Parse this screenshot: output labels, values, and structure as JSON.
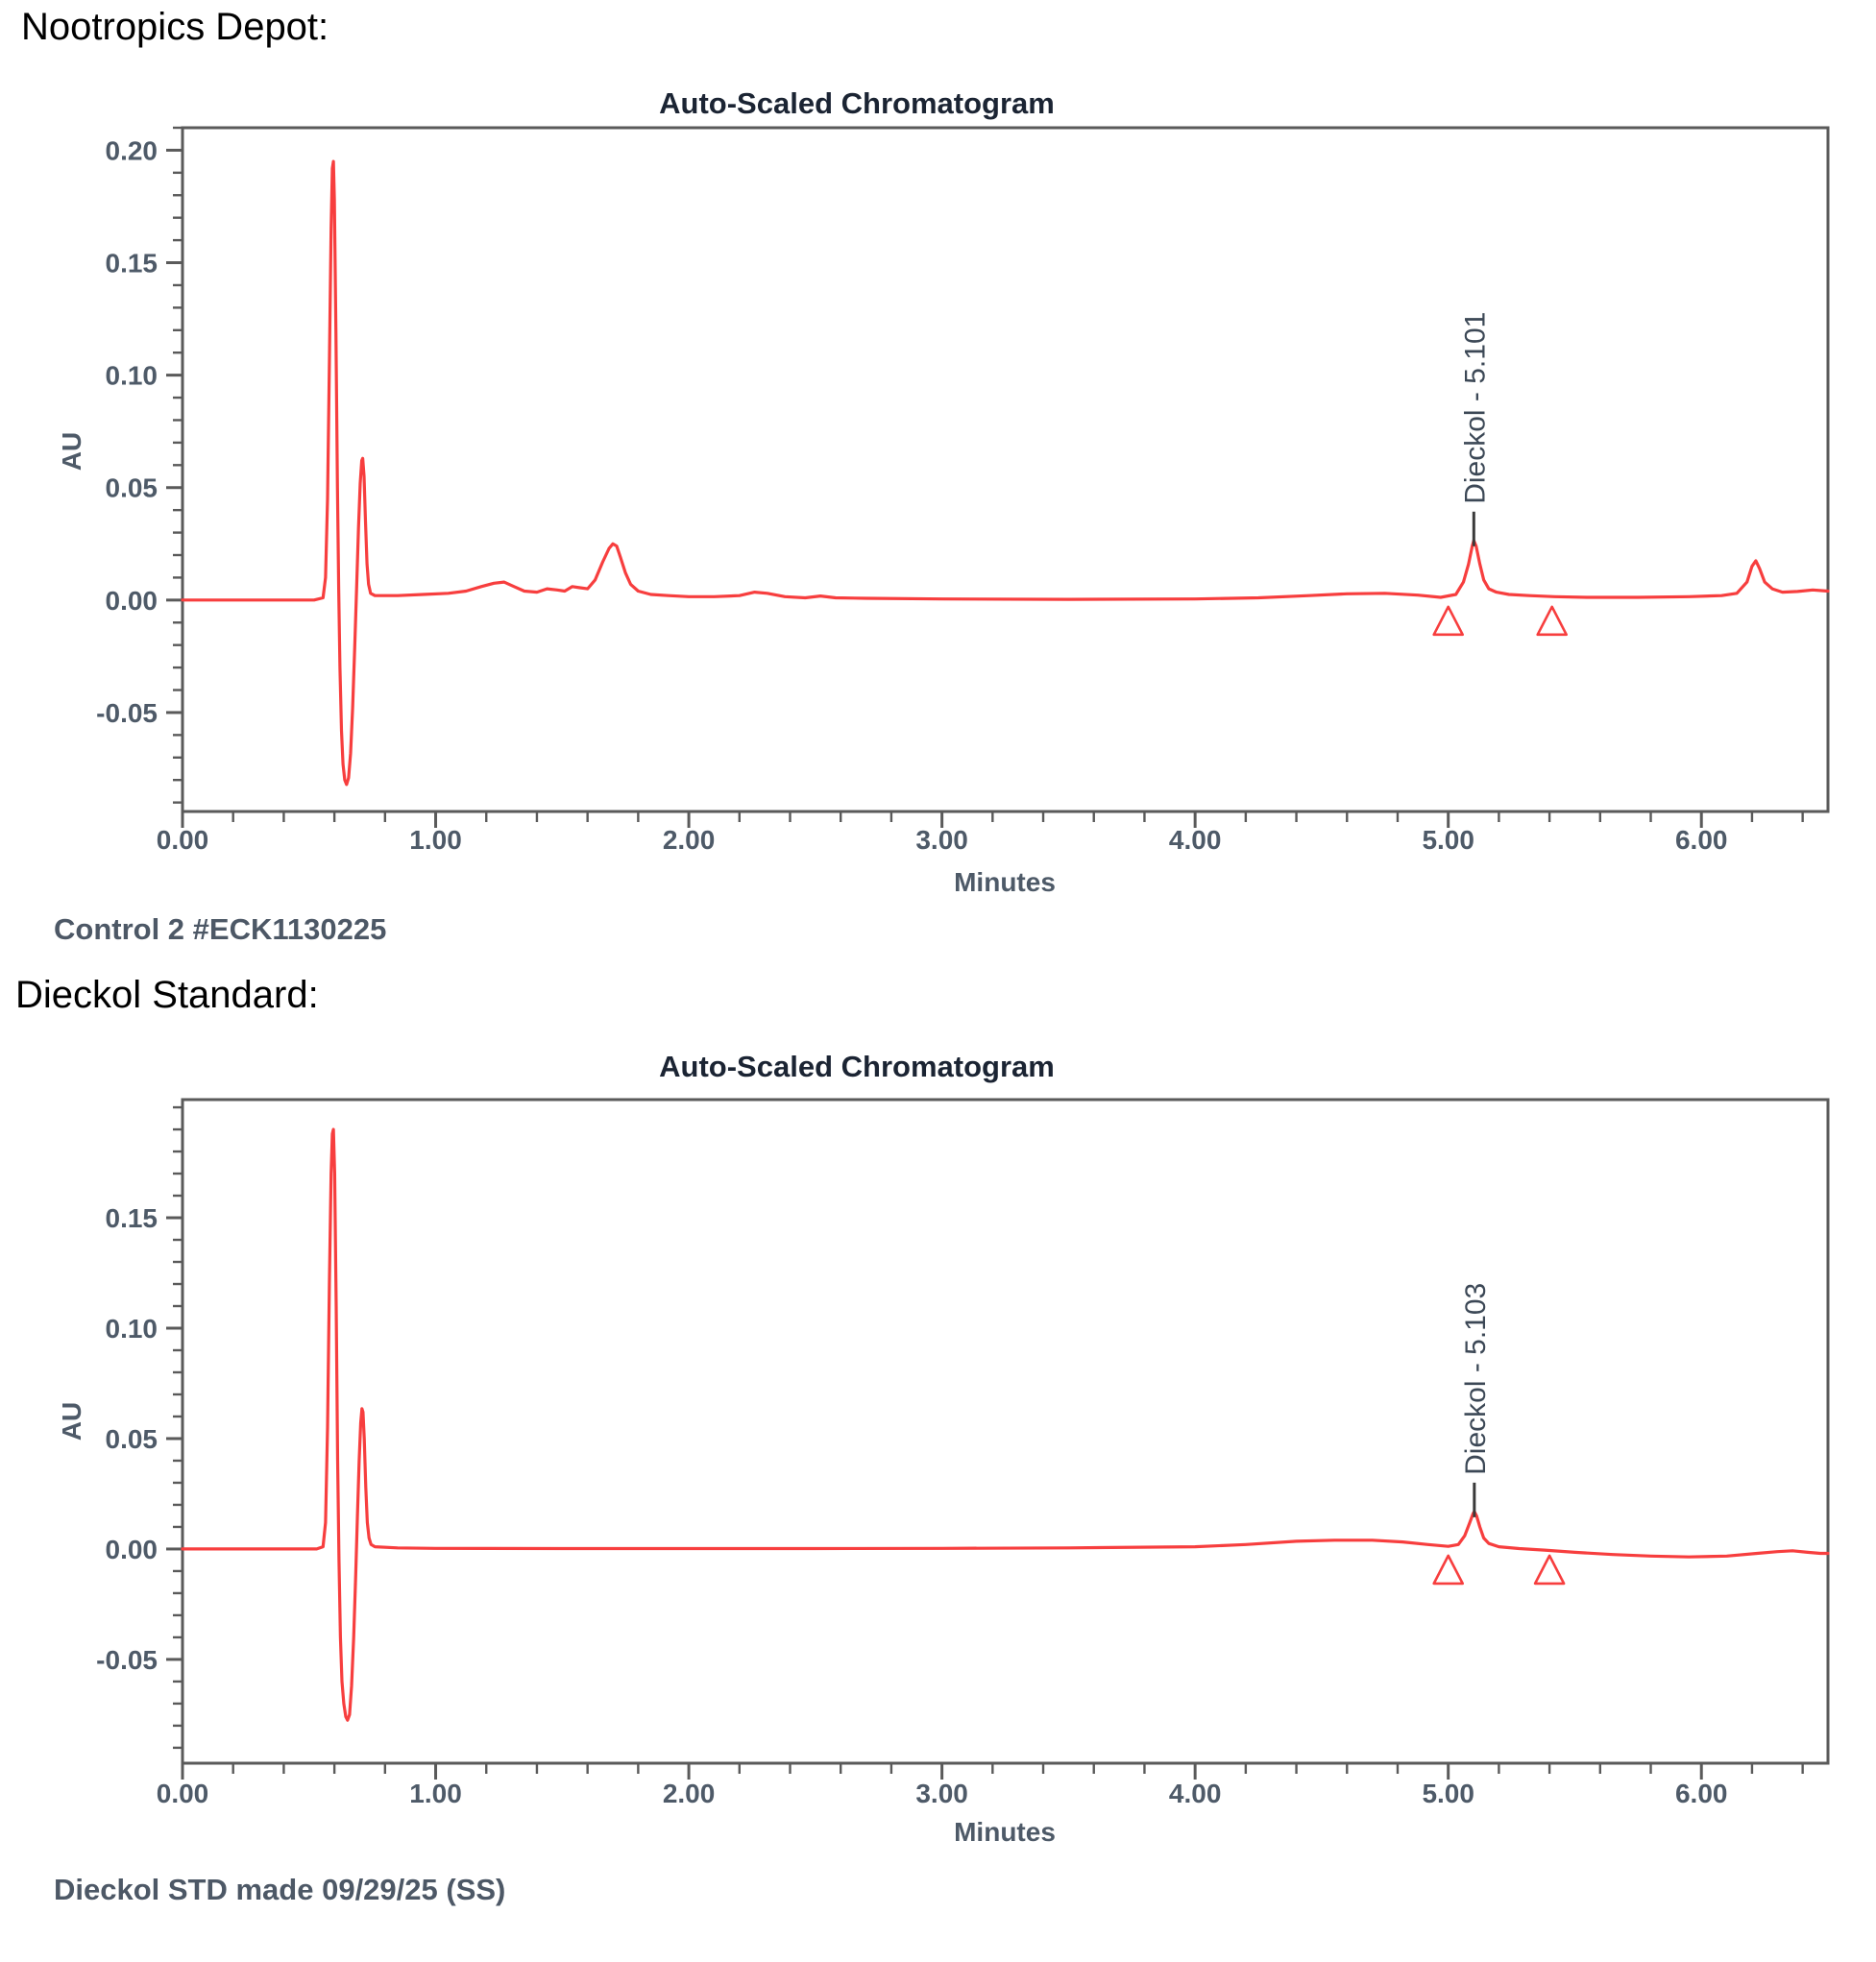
{
  "page": {
    "heading_1": "Nootropics Depot:",
    "caption_1": "Control 2 #ECK1130225",
    "heading_2": "Dieckol Standard:",
    "caption_2": "Dieckol STD made 09/29/25 (SS)"
  },
  "colors": {
    "trace": "#F73E3E",
    "frame": "#5A5A5A",
    "tick_text": "#4E5A68",
    "title_text": "#1B2433",
    "peak_text": "#3C4856",
    "peak_tick": "#3A3A3A",
    "caption_text": "#4D5866",
    "heading_text": "#000000",
    "background": "#FFFFFF"
  },
  "chart_data": [
    {
      "type": "line",
      "title": "Auto-Scaled Chromatogram",
      "xlabel": "Minutes",
      "ylabel": "AU",
      "grid": false,
      "legend": "none",
      "xlim": [
        0,
        6.5
      ],
      "ylim": [
        -0.094,
        0.21
      ],
      "x_ticks": [
        {
          "v": 0,
          "label": "0.00"
        },
        {
          "v": 1,
          "label": "1.00"
        },
        {
          "v": 2,
          "label": "2.00"
        },
        {
          "v": 3,
          "label": "3.00"
        },
        {
          "v": 4,
          "label": "4.00"
        },
        {
          "v": 5,
          "label": "5.00"
        },
        {
          "v": 6,
          "label": "6.00"
        }
      ],
      "x_minor_step": 0.2,
      "y_ticks": [
        {
          "v": -0.05,
          "label": "-0.05"
        },
        {
          "v": 0,
          "label": "0.00"
        },
        {
          "v": 0.05,
          "label": "0.05"
        },
        {
          "v": 0.1,
          "label": "0.10"
        },
        {
          "v": 0.15,
          "label": "0.15"
        },
        {
          "v": 0.2,
          "label": "0.20"
        }
      ],
      "y_minor_step": 0.01,
      "peak": {
        "label": "Dieckol - 5.101",
        "x": 5.101,
        "apex_au": 0.0265
      },
      "integration_markers_x": [
        5.0,
        5.41
      ],
      "series": [
        {
          "name": "Control 2 #ECK1130225",
          "color": "#F73E3E",
          "points": [
            [
              0,
              0
            ],
            [
              0.3,
              0
            ],
            [
              0.45,
              0
            ],
            [
              0.52,
              0
            ],
            [
              0.555,
              0.001
            ],
            [
              0.565,
              0.01
            ],
            [
              0.573,
              0.045
            ],
            [
              0.58,
              0.105
            ],
            [
              0.587,
              0.165
            ],
            [
              0.592,
              0.192
            ],
            [
              0.596,
              0.195
            ],
            [
              0.6,
              0.178
            ],
            [
              0.606,
              0.12
            ],
            [
              0.612,
              0.05
            ],
            [
              0.617,
              0.005
            ],
            [
              0.622,
              -0.03
            ],
            [
              0.628,
              -0.058
            ],
            [
              0.634,
              -0.073
            ],
            [
              0.641,
              -0.08
            ],
            [
              0.648,
              -0.082
            ],
            [
              0.656,
              -0.079
            ],
            [
              0.664,
              -0.068
            ],
            [
              0.672,
              -0.048
            ],
            [
              0.68,
              -0.022
            ],
            [
              0.688,
              0.006
            ],
            [
              0.695,
              0.032
            ],
            [
              0.702,
              0.052
            ],
            [
              0.708,
              0.062
            ],
            [
              0.712,
              0.063
            ],
            [
              0.717,
              0.055
            ],
            [
              0.723,
              0.035
            ],
            [
              0.729,
              0.016
            ],
            [
              0.735,
              0.007
            ],
            [
              0.743,
              0.003
            ],
            [
              0.76,
              0.002
            ],
            [
              0.85,
              0.002
            ],
            [
              0.95,
              0.0025
            ],
            [
              1.05,
              0.003
            ],
            [
              1.12,
              0.004
            ],
            [
              1.18,
              0.006
            ],
            [
              1.23,
              0.0075
            ],
            [
              1.27,
              0.008
            ],
            [
              1.31,
              0.006
            ],
            [
              1.35,
              0.004
            ],
            [
              1.4,
              0.0035
            ],
            [
              1.44,
              0.005
            ],
            [
              1.48,
              0.0045
            ],
            [
              1.51,
              0.004
            ],
            [
              1.54,
              0.006
            ],
            [
              1.57,
              0.0055
            ],
            [
              1.6,
              0.005
            ],
            [
              1.63,
              0.009
            ],
            [
              1.66,
              0.017
            ],
            [
              1.685,
              0.023
            ],
            [
              1.7,
              0.025
            ],
            [
              1.715,
              0.024
            ],
            [
              1.73,
              0.019
            ],
            [
              1.75,
              0.012
            ],
            [
              1.77,
              0.007
            ],
            [
              1.8,
              0.004
            ],
            [
              1.85,
              0.0025
            ],
            [
              1.92,
              0.002
            ],
            [
              2,
              0.0015
            ],
            [
              2.1,
              0.0015
            ],
            [
              2.2,
              0.002
            ],
            [
              2.26,
              0.0035
            ],
            [
              2.31,
              0.003
            ],
            [
              2.38,
              0.0015
            ],
            [
              2.46,
              0.001
            ],
            [
              2.52,
              0.0018
            ],
            [
              2.58,
              0.001
            ],
            [
              2.7,
              0.0008
            ],
            [
              3,
              0.0005
            ],
            [
              3.5,
              0.0003
            ],
            [
              4,
              0.0005
            ],
            [
              4.25,
              0.001
            ],
            [
              4.45,
              0.002
            ],
            [
              4.6,
              0.0028
            ],
            [
              4.75,
              0.003
            ],
            [
              4.88,
              0.0022
            ],
            [
              4.97,
              0.0012
            ],
            [
              5.03,
              0.0025
            ],
            [
              5.06,
              0.008
            ],
            [
              5.08,
              0.016
            ],
            [
              5.095,
              0.024
            ],
            [
              5.101,
              0.0265
            ],
            [
              5.11,
              0.024
            ],
            [
              5.125,
              0.016
            ],
            [
              5.14,
              0.009
            ],
            [
              5.16,
              0.005
            ],
            [
              5.19,
              0.0035
            ],
            [
              5.24,
              0.0025
            ],
            [
              5.32,
              0.002
            ],
            [
              5.42,
              0.0015
            ],
            [
              5.55,
              0.0012
            ],
            [
              5.75,
              0.0012
            ],
            [
              5.95,
              0.0015
            ],
            [
              6.08,
              0.002
            ],
            [
              6.14,
              0.003
            ],
            [
              6.18,
              0.008
            ],
            [
              6.2,
              0.015
            ],
            [
              6.215,
              0.0175
            ],
            [
              6.23,
              0.014
            ],
            [
              6.25,
              0.008
            ],
            [
              6.28,
              0.005
            ],
            [
              6.32,
              0.0035
            ],
            [
              6.38,
              0.0038
            ],
            [
              6.44,
              0.0045
            ],
            [
              6.5,
              0.004
            ]
          ]
        }
      ]
    },
    {
      "type": "line",
      "title": "Auto-Scaled Chromatogram",
      "xlabel": "Minutes",
      "ylabel": "AU",
      "grid": false,
      "legend": "none",
      "xlim": [
        0,
        6.5
      ],
      "ylim": [
        -0.097,
        0.2035
      ],
      "x_ticks": [
        {
          "v": 0,
          "label": "0.00"
        },
        {
          "v": 1,
          "label": "1.00"
        },
        {
          "v": 2,
          "label": "2.00"
        },
        {
          "v": 3,
          "label": "3.00"
        },
        {
          "v": 4,
          "label": "4.00"
        },
        {
          "v": 5,
          "label": "5.00"
        },
        {
          "v": 6,
          "label": "6.00"
        }
      ],
      "x_minor_step": 0.2,
      "y_ticks": [
        {
          "v": -0.05,
          "label": "-0.05"
        },
        {
          "v": 0,
          "label": "0.00"
        },
        {
          "v": 0.05,
          "label": "0.05"
        },
        {
          "v": 0.1,
          "label": "0.10"
        },
        {
          "v": 0.15,
          "label": "0.15"
        }
      ],
      "y_minor_step": 0.01,
      "peak": {
        "label": "Dieckol - 5.103",
        "x": 5.103,
        "apex_au": 0.017
      },
      "integration_markers_x": [
        5.0,
        5.4
      ],
      "series": [
        {
          "name": "Dieckol STD made 09/29/25 (SS)",
          "color": "#F73E3E",
          "points": [
            [
              0,
              0
            ],
            [
              0.3,
              0
            ],
            [
              0.45,
              0
            ],
            [
              0.53,
              0
            ],
            [
              0.555,
              0.001
            ],
            [
              0.565,
              0.012
            ],
            [
              0.573,
              0.055
            ],
            [
              0.58,
              0.12
            ],
            [
              0.587,
              0.17
            ],
            [
              0.592,
              0.188
            ],
            [
              0.596,
              0.19
            ],
            [
              0.601,
              0.17
            ],
            [
              0.607,
              0.11
            ],
            [
              0.613,
              0.04
            ],
            [
              0.618,
              -0.005
            ],
            [
              0.624,
              -0.04
            ],
            [
              0.63,
              -0.06
            ],
            [
              0.637,
              -0.07
            ],
            [
              0.645,
              -0.076
            ],
            [
              0.652,
              -0.0775
            ],
            [
              0.66,
              -0.075
            ],
            [
              0.668,
              -0.062
            ],
            [
              0.676,
              -0.04
            ],
            [
              0.684,
              -0.012
            ],
            [
              0.691,
              0.015
            ],
            [
              0.698,
              0.04
            ],
            [
              0.704,
              0.057
            ],
            [
              0.709,
              0.0635
            ],
            [
              0.713,
              0.062
            ],
            [
              0.718,
              0.05
            ],
            [
              0.724,
              0.028
            ],
            [
              0.73,
              0.012
            ],
            [
              0.737,
              0.005
            ],
            [
              0.745,
              0.002
            ],
            [
              0.76,
              0.001
            ],
            [
              0.85,
              0.0005
            ],
            [
              1,
              0.0003
            ],
            [
              1.5,
              0.0002
            ],
            [
              2,
              0.0002
            ],
            [
              2.5,
              0.0002
            ],
            [
              3,
              0.0003
            ],
            [
              3.5,
              0.0005
            ],
            [
              4,
              0.001
            ],
            [
              4.2,
              0.002
            ],
            [
              4.4,
              0.0035
            ],
            [
              4.55,
              0.004
            ],
            [
              4.7,
              0.004
            ],
            [
              4.82,
              0.0032
            ],
            [
              4.92,
              0.002
            ],
            [
              5,
              0.0012
            ],
            [
              5.04,
              0.002
            ],
            [
              5.065,
              0.006
            ],
            [
              5.085,
              0.012
            ],
            [
              5.098,
              0.016
            ],
            [
              5.103,
              0.017
            ],
            [
              5.112,
              0.015
            ],
            [
              5.125,
              0.01
            ],
            [
              5.14,
              0.005
            ],
            [
              5.16,
              0.0025
            ],
            [
              5.2,
              0.001
            ],
            [
              5.28,
              0.0002
            ],
            [
              5.38,
              -0.0005
            ],
            [
              5.5,
              -0.0015
            ],
            [
              5.65,
              -0.0025
            ],
            [
              5.8,
              -0.0032
            ],
            [
              5.95,
              -0.0036
            ],
            [
              6.1,
              -0.0032
            ],
            [
              6.22,
              -0.002
            ],
            [
              6.3,
              -0.0012
            ],
            [
              6.36,
              -0.0008
            ],
            [
              6.42,
              -0.0015
            ],
            [
              6.47,
              -0.002
            ],
            [
              6.5,
              -0.002
            ]
          ]
        }
      ]
    }
  ]
}
